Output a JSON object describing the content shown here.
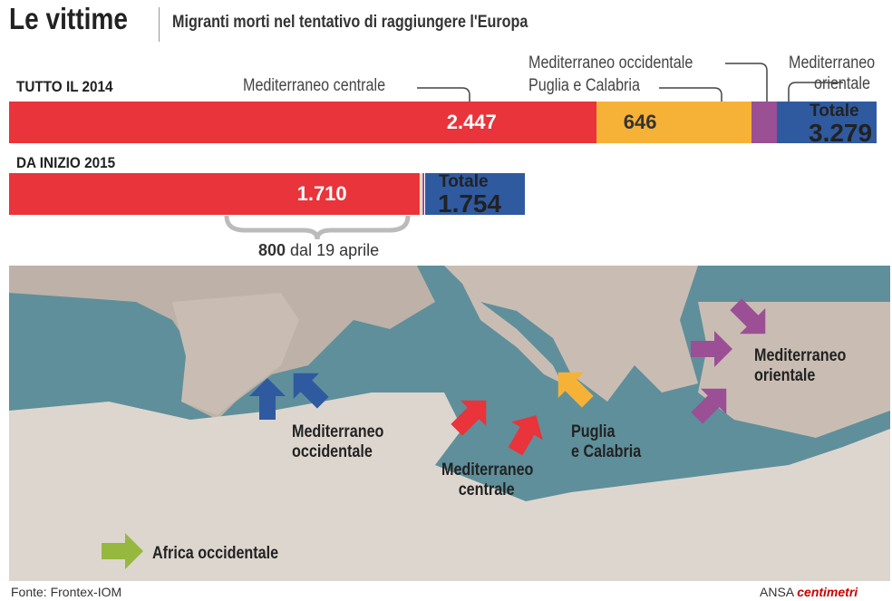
{
  "header": {
    "title": "Le vittime",
    "subtitle": "Migranti morti nel tentativo di raggiungere l'Europa"
  },
  "chart_data": {
    "type": "bar",
    "title": "Migranti morti nel tentativo di raggiungere l'Europa",
    "categories": [
      "TUTTO IL 2014",
      "DA INIZIO 2015"
    ],
    "series": [
      {
        "name": "Mediterraneo centrale",
        "color": "#e8343a",
        "values": [
          2447,
          1710
        ]
      },
      {
        "name": "Puglia e Calabria",
        "color": "#f6b237",
        "values": [
          646,
          8
        ]
      },
      {
        "name": "Mediterraneo occidentale",
        "color": "#9b4f95",
        "values": [
          106,
          12
        ]
      },
      {
        "name": "Mediterraneo orientale",
        "color": "#2f5aa0",
        "values": [
          80,
          24
        ]
      }
    ],
    "totals": [
      3279,
      1754
    ],
    "value_labels": [
      "2.447",
      "646",
      "1.710"
    ],
    "total_label": "Totale",
    "total_values": [
      "3.279",
      "1.754"
    ],
    "annotation": {
      "bold": "800",
      "text": " dal 19 aprile"
    }
  },
  "labels": {
    "central": "Mediterraneo centrale",
    "western": "Mediterraneo occidentale",
    "puglia": "Puglia e Calabria",
    "eastern1": "Mediterraneo",
    "eastern2": "orientale"
  },
  "map": {
    "western": [
      "Mediterraneo",
      "occidentale"
    ],
    "central": [
      "Mediterraneo",
      "centrale"
    ],
    "puglia": [
      "Puglia",
      "e Calabria"
    ],
    "eastern": [
      "Mediterraneo",
      "orientale"
    ],
    "africa": "Africa occidentale"
  },
  "footer": {
    "source": "Fonte: Frontex-IOM",
    "credit_a": "ANSA",
    "credit_b": "centimetri"
  }
}
